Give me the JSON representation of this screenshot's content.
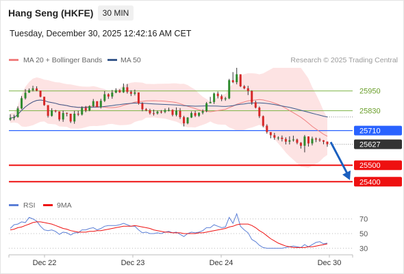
{
  "header": {
    "title": "Hang Seng (HKFE)",
    "timeframe": "30 MIN",
    "timestamp": "Tuesday, December 30, 2025 12:42:16 AM CET"
  },
  "legend": {
    "ma20_label": "MA 20 + Bollinger Bands",
    "ma50_label": "MA 50",
    "credit": "Research © 2025 Trading Central",
    "ma20_color": "#f08080",
    "ma50_color": "#3a5a8c"
  },
  "rsi_legend": {
    "rsi_label": "RSI",
    "ma_label": "9MA",
    "rsi_color": "#5b7fd6",
    "ma_color": "#ee1111"
  },
  "chart_data": [
    {
      "type": "candlestick",
      "x_labels": [
        "Dec 22",
        "Dec 23",
        "Dec 24",
        "Dec 30"
      ],
      "price_range": [
        25310,
        26090
      ],
      "levels": [
        {
          "value": 25950,
          "label": "25950",
          "kind": "resistance",
          "color": "#7cb342"
        },
        {
          "value": 25830,
          "label": "25830",
          "kind": "resistance",
          "color": "#7cb342"
        },
        {
          "value": 25710,
          "label": "25710",
          "kind": "pivot",
          "color": "#2962ff"
        },
        {
          "value": 25627,
          "label": "25627",
          "kind": "last-price",
          "color": "#333333"
        },
        {
          "value": 25500,
          "label": "25500",
          "kind": "support",
          "color": "#ee1111"
        },
        {
          "value": 25400,
          "label": "25400",
          "kind": "support",
          "color": "#ee1111"
        }
      ],
      "last_price": 25627,
      "forecast_arrow": {
        "from": 25640,
        "to": 25410,
        "direction": "down",
        "color": "#1a5fbf"
      },
      "series": [
        {
          "name": "Price",
          "close": [
            25786,
            25792,
            25844,
            25906,
            25939,
            25955,
            25965,
            25952,
            25915,
            25864,
            25799,
            25832,
            25826,
            25777,
            25816,
            25812,
            25765,
            25812,
            25807,
            25847,
            25832,
            25858,
            25888,
            25852,
            25890,
            25930,
            25916,
            25940,
            25954,
            25942,
            25972,
            25944,
            25933,
            25941,
            25874,
            25839,
            25833,
            25815,
            25814,
            25824,
            25823,
            25834,
            25835,
            25805,
            25829,
            25791,
            25754,
            25789,
            25816,
            25800,
            25818,
            25828,
            25875,
            25883,
            25934,
            25918,
            25900,
            25905,
            26015,
            26003,
            26051,
            25978,
            25966,
            25949,
            25881,
            25849,
            25797,
            25739,
            25701,
            25682,
            25667,
            25667,
            25659,
            25643,
            25651,
            25656,
            25636,
            25618,
            25674,
            25632,
            25661,
            25656,
            25651,
            25643,
            25627
          ],
          "high": [
            25809,
            25806,
            25856,
            25919,
            25961,
            25965,
            25981,
            25978,
            25942,
            25892,
            25833,
            25845,
            25835,
            25812,
            25831,
            25820,
            25801,
            25829,
            25829,
            25857,
            25859,
            25863,
            25901,
            25883,
            25902,
            25949,
            25936,
            25956,
            25966,
            25960,
            25995,
            25992,
            25954,
            25958,
            25939,
            25881,
            25846,
            25842,
            25837,
            25831,
            25834,
            25844,
            25849,
            25839,
            25850,
            25846,
            25799,
            25791,
            25826,
            25829,
            25820,
            25838,
            25883,
            25914,
            25940,
            25946,
            25929,
            25914,
            26023,
            26064,
            26090,
            26046,
            25985,
            25981,
            25954,
            25891,
            25856,
            25801,
            25748,
            25699,
            25696,
            25675,
            25680,
            25669,
            25675,
            25679,
            25661,
            25640,
            25683,
            25675,
            25673,
            25668,
            25665,
            25652,
            25644
          ],
          "low": [
            25769,
            25773,
            25788,
            25839,
            25898,
            25939,
            25947,
            25948,
            25911,
            25860,
            25789,
            25794,
            25819,
            25767,
            25763,
            25796,
            25756,
            25751,
            25798,
            25801,
            25821,
            25827,
            25851,
            25852,
            25844,
            25883,
            25902,
            25903,
            25936,
            25938,
            25938,
            25934,
            25919,
            25923,
            25867,
            25827,
            25827,
            25807,
            25801,
            25807,
            25813,
            25815,
            25826,
            25796,
            25796,
            25780,
            25735,
            25748,
            25786,
            25792,
            25793,
            25808,
            25821,
            25877,
            25871,
            25905,
            25888,
            25890,
            25900,
            25997,
            25990,
            25973,
            25960,
            25925,
            25866,
            25844,
            25786,
            25730,
            25691,
            25663,
            25654,
            25652,
            25644,
            25626,
            25626,
            25643,
            25627,
            25601,
            25578,
            25613,
            25620,
            25640,
            25642,
            25627,
            25612
          ]
        },
        {
          "name": "MA 20"
        },
        {
          "name": "MA 50"
        }
      ]
    },
    {
      "type": "line",
      "levels": [
        70,
        50,
        30
      ],
      "x_labels": [
        "Dec 22",
        "Dec 23",
        "Dec 24",
        "Dec 30"
      ],
      "y_range": [
        22,
        78
      ],
      "series": [
        {
          "name": "RSI",
          "values": [
            57,
            62,
            63,
            66,
            65,
            72,
            70,
            67,
            60,
            55,
            54,
            55,
            53,
            49,
            52,
            51,
            48,
            51,
            51,
            55,
            55,
            57,
            58,
            55,
            57,
            60,
            61,
            61,
            61,
            62,
            64,
            62,
            60,
            60,
            55,
            51,
            52,
            50,
            50,
            51,
            50,
            52,
            53,
            51,
            52,
            49,
            46,
            50,
            52,
            51,
            52,
            54,
            58,
            58,
            62,
            60,
            58,
            59,
            72,
            64,
            77,
            60,
            55,
            51,
            42,
            39,
            34,
            31,
            30,
            30,
            30,
            30,
            30,
            31,
            32,
            33,
            32,
            31,
            35,
            32,
            35,
            38,
            39,
            36,
            37
          ]
        },
        {
          "name": "9MA",
          "values": [
            55,
            56,
            58,
            59,
            61,
            63,
            65,
            66,
            66,
            65,
            64,
            63,
            61,
            59,
            57,
            56,
            54,
            53,
            52,
            52,
            52,
            53,
            53,
            54,
            54,
            55,
            56,
            57,
            58,
            59,
            60,
            60,
            60,
            61,
            60,
            59,
            58,
            57,
            55,
            54,
            53,
            52,
            52,
            51,
            51,
            51,
            50,
            50,
            50,
            50,
            51,
            51,
            52,
            53,
            54,
            55,
            56,
            57,
            59,
            60,
            62,
            63,
            63,
            63,
            61,
            58,
            54,
            51,
            47,
            43,
            40,
            37,
            35,
            33,
            32,
            31,
            31,
            31,
            31,
            32,
            32,
            33,
            34,
            35,
            36
          ]
        }
      ]
    }
  ]
}
